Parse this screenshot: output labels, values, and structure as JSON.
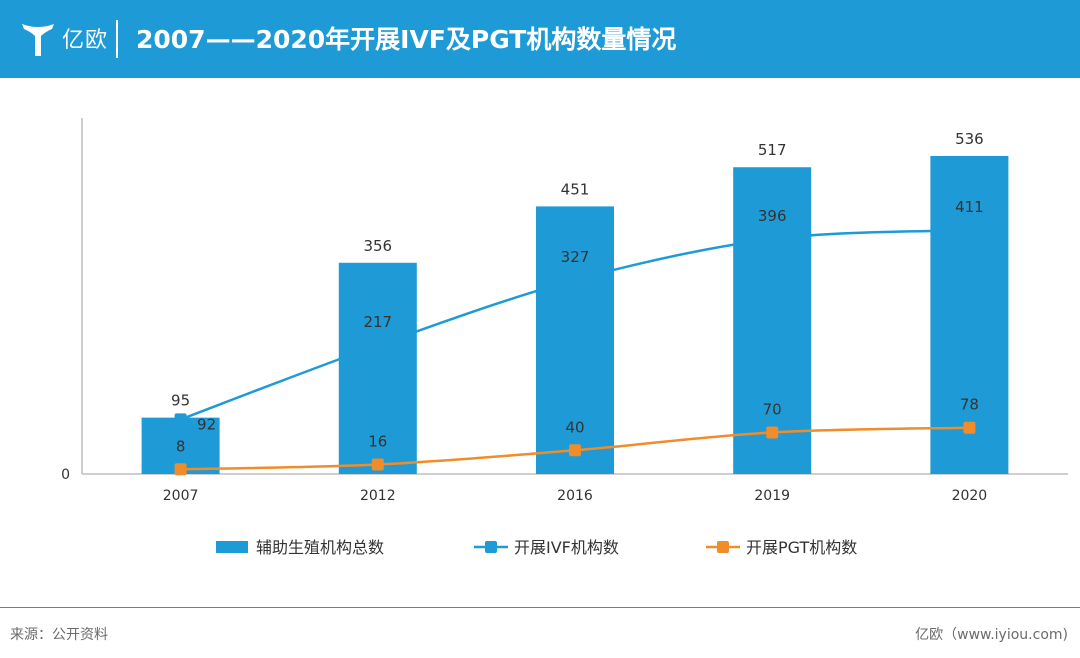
{
  "header": {
    "logo_text": "亿欧",
    "title": "2007——2020年开展IVF及PGT机构数量情况"
  },
  "footer": {
    "source": "来源：公开资料",
    "brand": "亿欧（www.iyiou.com)"
  },
  "colors": {
    "banner": "#1e9ad6",
    "bar": "#1e9ad6",
    "ivf_line": "#1e9ad6",
    "pgt_line": "#f08c2a"
  },
  "chart_data": {
    "type": "bar",
    "title": "2007——2020年开展IVF及PGT机构数量情况",
    "categories": [
      "2007",
      "2012",
      "2016",
      "2019",
      "2020"
    ],
    "ylim": [
      0,
      600
    ],
    "y_tick_labels": [
      "0"
    ],
    "grid": false,
    "legend_position": "bottom",
    "series": [
      {
        "name": "辅助生殖机构总数",
        "kind": "bar",
        "values": [
          95,
          356,
          451,
          517,
          536
        ],
        "color": "#1e9ad6"
      },
      {
        "name": "开展IVF机构数",
        "kind": "line",
        "values": [
          92,
          217,
          327,
          396,
          411
        ],
        "color": "#1e9ad6"
      },
      {
        "name": "开展PGT机构数",
        "kind": "line",
        "values": [
          8,
          16,
          40,
          70,
          78
        ],
        "color": "#f08c2a"
      }
    ]
  }
}
